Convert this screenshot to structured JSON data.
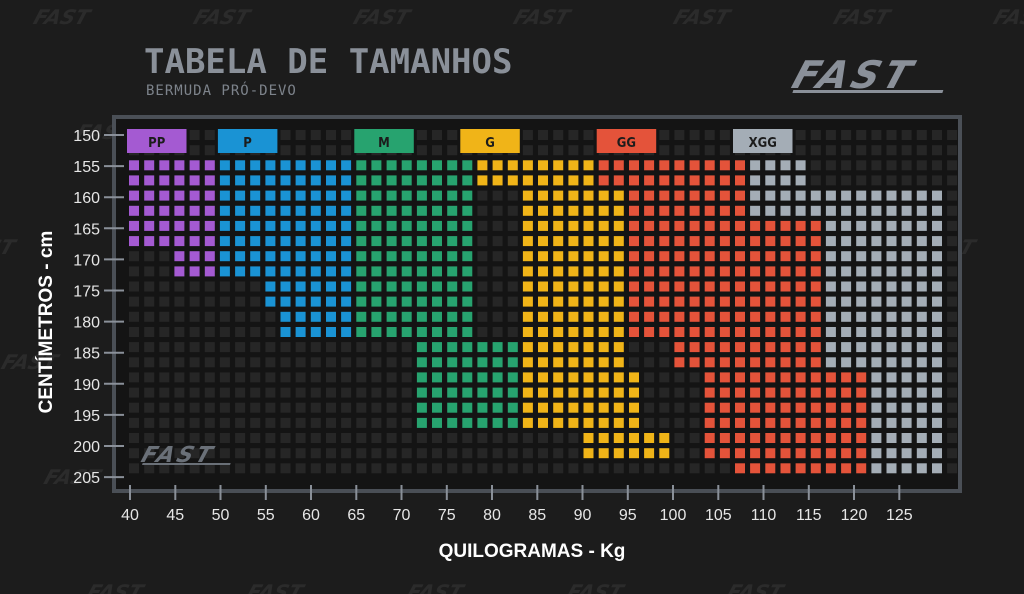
{
  "title": "TABELA DE TAMANHOS",
  "subtitle": "BERMUDA PRÓ-DEVO",
  "brand": "FAST",
  "colors": {
    "background": "#1c1c1c",
    "panel": "#141414",
    "frame": "#4a4f56",
    "empty_cell": "#262626",
    "title": "#8a9099"
  },
  "chart_data": {
    "type": "heatmap",
    "xlabel": "QUILOGRAMAS - Kg",
    "ylabel": "CENTÍMETROS - cm",
    "x_ticks": [
      "40",
      "45",
      "50",
      "55",
      "60",
      "65",
      "70",
      "75",
      "80",
      "85",
      "90",
      "95",
      "100",
      "105",
      "110",
      "115",
      "120",
      "125"
    ],
    "y_ticks": [
      "150",
      "155",
      "160",
      "165",
      "170",
      "175",
      "180",
      "185",
      "190",
      "195",
      "200",
      "205"
    ],
    "x_range": [
      40,
      130
    ],
    "y_range": [
      150,
      205
    ],
    "sizes": [
      {
        "label": "PP",
        "color": "#a45ad2",
        "label_color": "#1c1c1c",
        "regions": [
          {
            "height": [
              155,
              165
            ],
            "weight": [
              40,
              50
            ]
          },
          {
            "height": [
              170,
              170
            ],
            "weight": [
              45,
              50
            ]
          }
        ]
      },
      {
        "label": "P",
        "color": "#1a93d4",
        "label_color": "#1c1c1c",
        "regions": [
          {
            "height": [
              155,
              170
            ],
            "weight": [
              50,
              65
            ]
          },
          {
            "height": [
              175,
              175
            ],
            "weight": [
              55,
              65
            ]
          },
          {
            "height": [
              180,
              180
            ],
            "weight": [
              57,
              65
            ]
          }
        ]
      },
      {
        "label": "M",
        "color": "#27a36f",
        "label_color": "#1c1c1c",
        "regions": [
          {
            "height": [
              155,
              180
            ],
            "weight": [
              65,
              78
            ]
          },
          {
            "height": [
              185,
              195
            ],
            "weight": [
              72,
              83
            ]
          }
        ]
      },
      {
        "label": "G",
        "color": "#f0b418",
        "label_color": "#1c1c1c",
        "regions": [
          {
            "height": [
              155,
              155
            ],
            "weight": [
              78,
              91
            ]
          },
          {
            "height": [
              160,
              185
            ],
            "weight": [
              83,
              95
            ]
          },
          {
            "height": [
              190,
              195
            ],
            "weight": [
              83,
              97
            ]
          },
          {
            "height": [
              200,
              200
            ],
            "weight": [
              90,
              100
            ]
          }
        ]
      },
      {
        "label": "GG",
        "color": "#e4533a",
        "label_color": "#1c1c1c",
        "regions": [
          {
            "height": [
              155,
              160
            ],
            "weight": [
              91,
              108
            ]
          },
          {
            "height": [
              165,
              180
            ],
            "weight": [
              95,
              116
            ]
          },
          {
            "height": [
              185,
              185
            ],
            "weight": [
              100,
              116
            ]
          },
          {
            "height": [
              190,
              200
            ],
            "weight": [
              104,
              121
            ]
          },
          {
            "height": [
              205,
              205
            ],
            "weight": [
              106,
              121
            ]
          }
        ]
      },
      {
        "label": "XGG",
        "color": "#a4adb6",
        "label_color": "#1c1c1c",
        "regions": [
          {
            "height": [
              155,
              155
            ],
            "weight": [
              108,
              115
            ]
          },
          {
            "height": [
              160,
              160
            ],
            "weight": [
              108,
              130
            ]
          },
          {
            "height": [
              165,
              185
            ],
            "weight": [
              116,
              130
            ]
          },
          {
            "height": [
              190,
              205
            ],
            "weight": [
              121,
              130
            ]
          }
        ]
      }
    ]
  }
}
